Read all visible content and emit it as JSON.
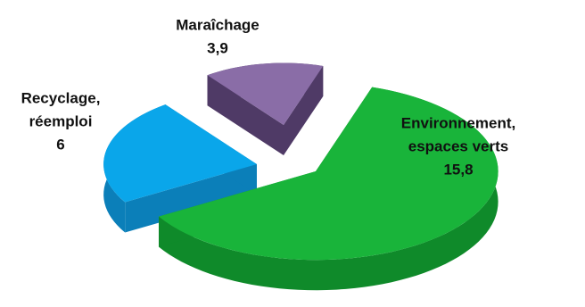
{
  "chart_data": {
    "type": "pie",
    "title": "",
    "values_total": 25.7,
    "slices": [
      {
        "name": "Environnement, espaces verts",
        "label_lines": [
          "Environnement,",
          "espaces verts"
        ],
        "value_label": "15,8",
        "value": 15.8,
        "color_top": "#19b43a",
        "color_side": "#0f8a2a",
        "exploded": true
      },
      {
        "name": "Recyclage, réemploi",
        "label_lines": [
          "Recyclage,",
          "réemploi"
        ],
        "value_label": "6",
        "value": 6,
        "color_top": "#0aa6ea",
        "color_side": "#0b7fb9",
        "exploded": true
      },
      {
        "name": "Maraîchage",
        "label_lines": [
          "Maraîchage"
        ],
        "value_label": "3,9",
        "value": 3.9,
        "color_top": "#8a6da7",
        "color_side": "#4f3a66",
        "exploded": true
      }
    ],
    "style": "3d-exploded-pie"
  }
}
